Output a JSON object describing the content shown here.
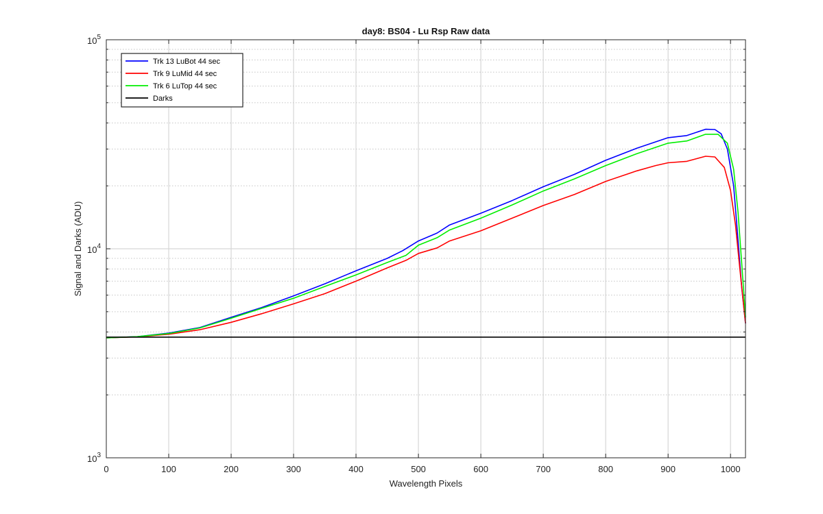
{
  "chart_data": {
    "type": "line",
    "title": "day8: BS04  - Lu Rsp Raw data",
    "xlabel": "Wavelength Pixels",
    "ylabel": "Signal and Darks (ADU)",
    "xlim": [
      0,
      1024
    ],
    "ylim": [
      1000,
      100000
    ],
    "yscale": "log",
    "grid": true,
    "legend_position": "top-left",
    "x_ticks": [
      0,
      100,
      200,
      300,
      400,
      500,
      600,
      700,
      800,
      900,
      1000
    ],
    "y_ticks": [
      1000,
      10000,
      100000
    ],
    "y_tick_labels": [
      {
        "base": "10",
        "exp": "3"
      },
      {
        "base": "10",
        "exp": "4"
      },
      {
        "base": "10",
        "exp": "5"
      }
    ],
    "series": [
      {
        "name": "Trk 13 LuBot 44 sec",
        "color": "#0000ff",
        "points": [
          [
            0,
            3750
          ],
          [
            50,
            3800
          ],
          [
            100,
            3950
          ],
          [
            150,
            4200
          ],
          [
            200,
            4700
          ],
          [
            250,
            5250
          ],
          [
            300,
            5950
          ],
          [
            350,
            6800
          ],
          [
            400,
            7850
          ],
          [
            450,
            9000
          ],
          [
            475,
            9800
          ],
          [
            500,
            10900
          ],
          [
            530,
            11900
          ],
          [
            550,
            13000
          ],
          [
            600,
            14800
          ],
          [
            650,
            17000
          ],
          [
            700,
            19800
          ],
          [
            750,
            22700
          ],
          [
            800,
            26500
          ],
          [
            850,
            30300
          ],
          [
            900,
            34000
          ],
          [
            930,
            34800
          ],
          [
            960,
            37300
          ],
          [
            975,
            37200
          ],
          [
            985,
            35500
          ],
          [
            995,
            30000
          ],
          [
            1005,
            20000
          ],
          [
            1012,
            11000
          ],
          [
            1018,
            6500
          ],
          [
            1024,
            4400
          ]
        ]
      },
      {
        "name": "Trk 9 LuMid 44 sec",
        "color": "#ff0000",
        "points": [
          [
            0,
            3750
          ],
          [
            50,
            3790
          ],
          [
            100,
            3900
          ],
          [
            150,
            4100
          ],
          [
            200,
            4450
          ],
          [
            250,
            4900
          ],
          [
            300,
            5450
          ],
          [
            350,
            6100
          ],
          [
            400,
            7000
          ],
          [
            450,
            8100
          ],
          [
            480,
            8800
          ],
          [
            500,
            9500
          ],
          [
            530,
            10100
          ],
          [
            550,
            10900
          ],
          [
            600,
            12200
          ],
          [
            650,
            14000
          ],
          [
            700,
            16100
          ],
          [
            750,
            18200
          ],
          [
            800,
            21000
          ],
          [
            850,
            23600
          ],
          [
            880,
            25000
          ],
          [
            900,
            25800
          ],
          [
            930,
            26200
          ],
          [
            960,
            27700
          ],
          [
            975,
            27500
          ],
          [
            990,
            24500
          ],
          [
            1000,
            19000
          ],
          [
            1008,
            13000
          ],
          [
            1015,
            8000
          ],
          [
            1024,
            4400
          ]
        ]
      },
      {
        "name": "Trk 6 LuTop 44 sec",
        "color": "#00ee00",
        "points": [
          [
            0,
            3750
          ],
          [
            50,
            3800
          ],
          [
            100,
            3930
          ],
          [
            150,
            4180
          ],
          [
            200,
            4650
          ],
          [
            250,
            5200
          ],
          [
            300,
            5800
          ],
          [
            350,
            6600
          ],
          [
            400,
            7500
          ],
          [
            450,
            8600
          ],
          [
            480,
            9300
          ],
          [
            500,
            10400
          ],
          [
            530,
            11300
          ],
          [
            550,
            12300
          ],
          [
            600,
            14000
          ],
          [
            650,
            16200
          ],
          [
            700,
            18900
          ],
          [
            750,
            21600
          ],
          [
            800,
            25000
          ],
          [
            850,
            28500
          ],
          [
            900,
            32000
          ],
          [
            930,
            32800
          ],
          [
            960,
            35300
          ],
          [
            980,
            35300
          ],
          [
            995,
            32000
          ],
          [
            1005,
            24000
          ],
          [
            1012,
            15000
          ],
          [
            1018,
            8500
          ],
          [
            1024,
            4700
          ]
        ]
      },
      {
        "name": "Darks",
        "color": "#000000",
        "points": [
          [
            0,
            3780
          ],
          [
            200,
            3780
          ],
          [
            400,
            3780
          ],
          [
            600,
            3780
          ],
          [
            800,
            3780
          ],
          [
            1024,
            3780
          ]
        ]
      }
    ]
  }
}
